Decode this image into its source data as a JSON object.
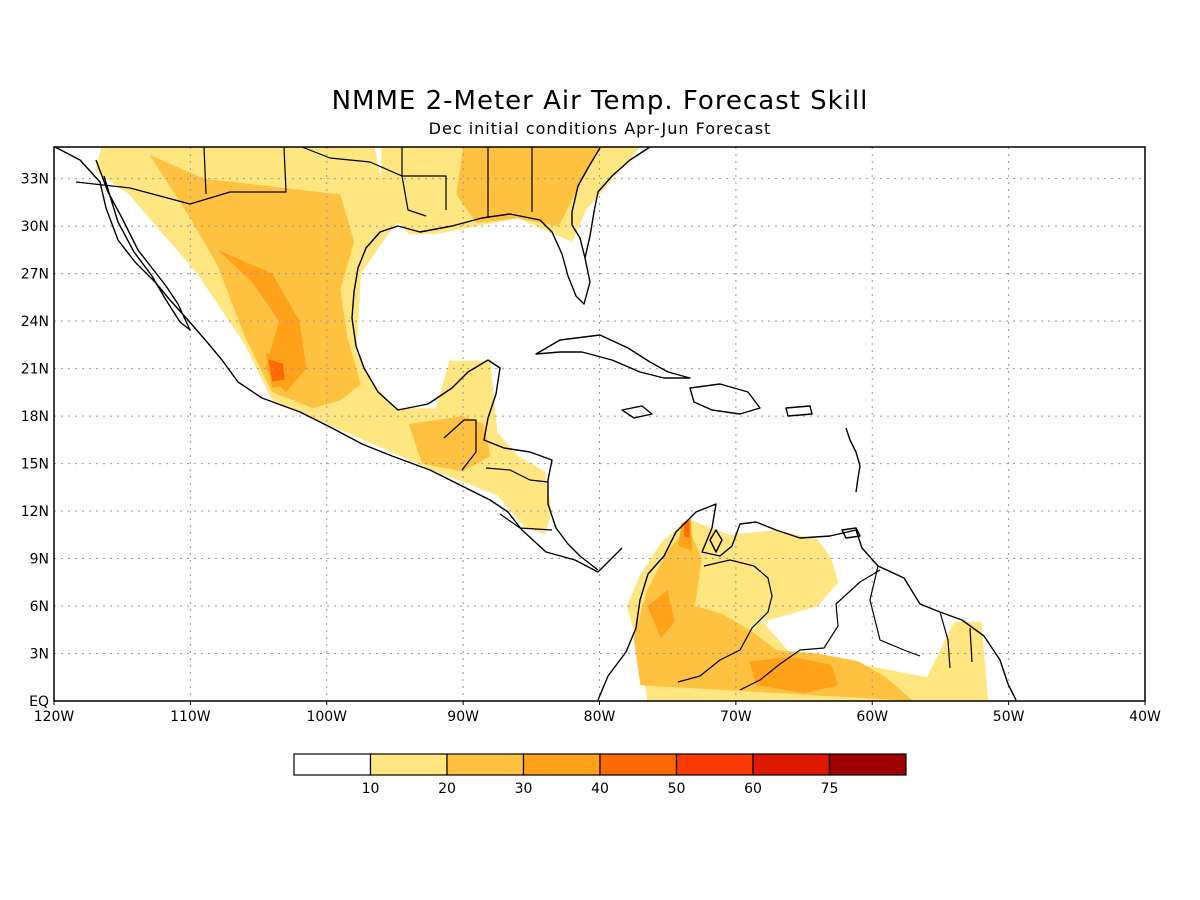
{
  "title": "NMME 2-Meter Air Temp. Forecast Skill",
  "subtitle": "Dec initial conditions  Apr-Jun Forecast",
  "chart_data": {
    "type": "heatmap",
    "x_axis": {
      "range": [
        -120,
        -40
      ],
      "tick_values": [
        -120,
        -110,
        -100,
        -90,
        -80,
        -70,
        -60,
        -50,
        -40
      ],
      "tick_labels": [
        "120W",
        "110W",
        "100W",
        "90W",
        "80W",
        "70W",
        "60W",
        "50W",
        "40W"
      ]
    },
    "y_axis": {
      "range": [
        0,
        35
      ],
      "tick_values": [
        0,
        3,
        6,
        9,
        12,
        15,
        18,
        21,
        24,
        27,
        30,
        33
      ],
      "tick_labels": [
        "EQ",
        "3N",
        "6N",
        "9N",
        "12N",
        "15N",
        "18N",
        "21N",
        "24N",
        "27N",
        "30N",
        "33N"
      ]
    },
    "grid": true,
    "colorbar": {
      "boundaries": [
        10,
        20,
        30,
        40,
        50,
        60,
        75
      ],
      "labels": [
        "10",
        "20",
        "30",
        "40",
        "50",
        "60",
        "75"
      ],
      "colors": [
        "#ffffff",
        "#ffe680",
        "#ffc140",
        "#ffa21a",
        "#ff6a00",
        "#ff3a00",
        "#dd1a00",
        "#a00000"
      ]
    },
    "regions": [
      {
        "level": 1,
        "polygon": [
          [
            -116.5,
            35
          ],
          [
            -96.5,
            35
          ],
          [
            -96,
            33
          ],
          [
            -94,
            31
          ],
          [
            -95.5,
            29.5
          ],
          [
            -97.5,
            27
          ],
          [
            -97.8,
            22
          ],
          [
            -96.5,
            20
          ],
          [
            -95,
            18.5
          ],
          [
            -92,
            18.5
          ],
          [
            -91,
            21.5
          ],
          [
            -88,
            21.5
          ],
          [
            -87.5,
            17
          ],
          [
            -86,
            15.5
          ],
          [
            -84,
            14.5
          ],
          [
            -83.5,
            12
          ],
          [
            -84,
            10.5
          ],
          [
            -85.5,
            11
          ],
          [
            -87.5,
            13
          ],
          [
            -92,
            14.5
          ],
          [
            -96,
            16
          ],
          [
            -100,
            17.5
          ],
          [
            -104,
            19
          ],
          [
            -106,
            22.5
          ],
          [
            -109.5,
            27
          ],
          [
            -112,
            29.5
          ],
          [
            -114.5,
            32
          ],
          [
            -117,
            33.5
          ]
        ]
      },
      {
        "level": 1,
        "polygon": [
          [
            -96,
            35
          ],
          [
            -77,
            35
          ],
          [
            -79,
            33
          ],
          [
            -81,
            31
          ],
          [
            -82,
            29
          ],
          [
            -86,
            30.5
          ],
          [
            -89,
            30
          ],
          [
            -92,
            29.5
          ],
          [
            -94,
            29.5
          ],
          [
            -95.5,
            31
          ],
          [
            -96,
            33
          ]
        ]
      },
      {
        "level": 1,
        "polygon": [
          [
            -76.5,
            0
          ],
          [
            -77,
            3
          ],
          [
            -78,
            6
          ],
          [
            -77,
            8
          ],
          [
            -75.5,
            10
          ],
          [
            -73.5,
            11.5
          ],
          [
            -72,
            11
          ],
          [
            -70.5,
            10.5
          ],
          [
            -67,
            10.8
          ],
          [
            -64,
            10.2
          ],
          [
            -63,
            9
          ],
          [
            -62.5,
            7.5
          ],
          [
            -64,
            6
          ],
          [
            -68,
            5
          ],
          [
            -66,
            3
          ],
          [
            -62,
            2.5
          ],
          [
            -59,
            2
          ],
          [
            -56,
            1.5
          ],
          [
            -54,
            5
          ],
          [
            -52,
            5
          ],
          [
            -51.5,
            0
          ]
        ]
      },
      {
        "level": 2,
        "polygon": [
          [
            -113,
            34.5
          ],
          [
            -109,
            33
          ],
          [
            -104,
            32.5
          ],
          [
            -99,
            32
          ],
          [
            -98,
            29
          ],
          [
            -99,
            26
          ],
          [
            -98.5,
            23
          ],
          [
            -97.5,
            20
          ],
          [
            -99,
            19
          ],
          [
            -101,
            18.5
          ],
          [
            -104,
            19.5
          ],
          [
            -106,
            23
          ],
          [
            -108,
            27.5
          ],
          [
            -110,
            30.5
          ]
        ]
      },
      {
        "level": 2,
        "polygon": [
          [
            -90,
            35
          ],
          [
            -80,
            35
          ],
          [
            -81.5,
            32.5
          ],
          [
            -83,
            30
          ],
          [
            -86,
            30.5
          ],
          [
            -89,
            30.2
          ],
          [
            -90.5,
            32
          ]
        ]
      },
      {
        "level": 2,
        "polygon": [
          [
            -94,
            17.5
          ],
          [
            -90,
            18
          ],
          [
            -88.5,
            17.5
          ],
          [
            -88,
            15.5
          ],
          [
            -90,
            14.5
          ],
          [
            -93,
            15
          ]
        ]
      },
      {
        "level": 2,
        "polygon": [
          [
            -77,
            1
          ],
          [
            -77.5,
            4
          ],
          [
            -76.5,
            7
          ],
          [
            -75,
            9.5
          ],
          [
            -73.5,
            11
          ],
          [
            -72.5,
            9
          ],
          [
            -73,
            6
          ],
          [
            -71,
            5.5
          ],
          [
            -69,
            4.5
          ],
          [
            -67,
            3.2
          ],
          [
            -64,
            3
          ],
          [
            -61,
            2.5
          ],
          [
            -59,
            1.5
          ],
          [
            -57,
            0
          ]
        ]
      },
      {
        "level": 3,
        "polygon": [
          [
            -108,
            28.5
          ],
          [
            -105.5,
            26.5
          ],
          [
            -103.5,
            24
          ],
          [
            -104.5,
            21
          ],
          [
            -103,
            19.5
          ],
          [
            -101.5,
            21
          ],
          [
            -102,
            24
          ],
          [
            -104,
            27
          ]
        ]
      },
      {
        "level": 3,
        "polygon": [
          [
            -104.5,
            22
          ],
          [
            -103,
            21.5
          ],
          [
            -102.5,
            20
          ],
          [
            -104,
            19.8
          ]
        ]
      },
      {
        "level": 3,
        "polygon": [
          [
            -75.5,
            4
          ],
          [
            -76.5,
            6
          ],
          [
            -75,
            7
          ],
          [
            -74.5,
            5
          ]
        ]
      },
      {
        "level": 3,
        "polygon": [
          [
            -69,
            2.5
          ],
          [
            -66,
            2.8
          ],
          [
            -63,
            2.3
          ],
          [
            -62.5,
            1
          ],
          [
            -65,
            0.5
          ],
          [
            -68.5,
            1
          ]
        ]
      },
      {
        "level": 3,
        "polygon": [
          [
            -74,
            11.2
          ],
          [
            -73.3,
            11.5
          ],
          [
            -73.2,
            9.5
          ],
          [
            -74.2,
            9.8
          ]
        ]
      },
      {
        "level": 4,
        "polygon": [
          [
            -104.3,
            21.6
          ],
          [
            -103.2,
            21.3
          ],
          [
            -103.1,
            20.3
          ],
          [
            -104,
            20.2
          ]
        ]
      },
      {
        "level": 4,
        "polygon": [
          [
            -73.8,
            11.3
          ],
          [
            -73.4,
            11.4
          ],
          [
            -73.4,
            10.3
          ],
          [
            -73.8,
            10.4
          ]
        ]
      }
    ]
  }
}
